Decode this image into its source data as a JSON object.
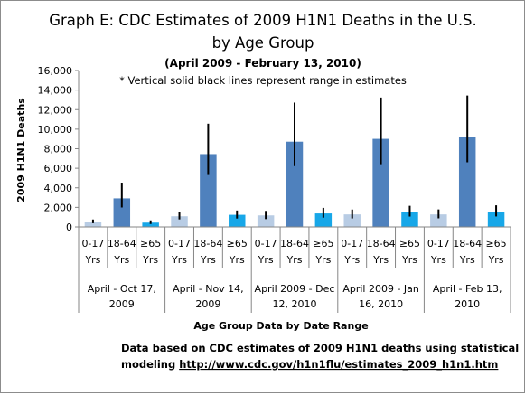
{
  "chart_data": {
    "type": "bar",
    "title_line1": "Graph E: CDC Estimates of 2009 H1N1 Deaths in the U.S.",
    "title_line2": "by Age Group",
    "subtitle": "(April 2009 - February 13, 2010)",
    "note": "* Vertical solid black lines represent range in estimates",
    "ylabel": "2009 H1N1 Deaths",
    "xlabel": "Age Group Data by Date Range",
    "ylim": [
      0,
      16000
    ],
    "yticks": [
      "0",
      "2,000",
      "4,000",
      "6,000",
      "8,000",
      "10,000",
      "12,000",
      "14,000",
      "16,000"
    ],
    "grid": false,
    "age_groups": [
      {
        "line1": "0-17",
        "line2": "Yrs",
        "color": "#b8cce4"
      },
      {
        "line1": "18-64",
        "line2": "Yrs",
        "color": "#4f81bd"
      },
      {
        "line1": "≥65",
        "line2": "Yrs",
        "color": "#17a7e8"
      }
    ],
    "date_ranges": [
      {
        "line1": "April - Oct 17,",
        "line2": "2009",
        "values": [
          540,
          2920,
          440
        ],
        "low": [
          380,
          1990,
          300
        ],
        "high": [
          760,
          4530,
          670
        ]
      },
      {
        "line1": "April - Nov 14,",
        "line2": "2009",
        "values": [
          1090,
          7450,
          1240
        ],
        "low": [
          770,
          5310,
          860
        ],
        "high": [
          1530,
          10560,
          1680
        ]
      },
      {
        "line1": "April 2009 - Dec",
        "line2": "12, 2010",
        "values": [
          1180,
          8720,
          1380
        ],
        "low": [
          800,
          6220,
          950
        ],
        "high": [
          1640,
          12720,
          1950
        ]
      },
      {
        "line1": "April 2009 - Jan",
        "line2": "16, 2010",
        "values": [
          1280,
          9010,
          1540
        ],
        "low": [
          870,
          6420,
          1060
        ],
        "high": [
          1780,
          13240,
          2160
        ]
      },
      {
        "line1": "April - Feb 13,",
        "line2": "2010",
        "values": [
          1280,
          9200,
          1520
        ],
        "low": [
          880,
          6610,
          1070
        ],
        "high": [
          1790,
          13450,
          2210
        ]
      }
    ]
  },
  "source": {
    "line1": "Data based on CDC estimates of 2009 H1N1 deaths using statistical",
    "line2_prefix": "modeling ",
    "link": "http://www.cdc.gov/h1n1flu/estimates_2009_h1n1.htm"
  }
}
